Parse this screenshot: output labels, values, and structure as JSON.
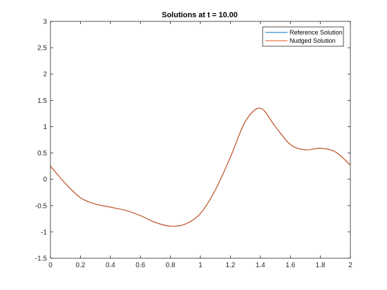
{
  "chart_data": {
    "type": "line",
    "title": "Solutions at t = 10.00",
    "xlabel": "",
    "ylabel": "",
    "xlim": [
      0,
      2
    ],
    "ylim": [
      -1.5,
      3
    ],
    "xticks": [
      0,
      0.2,
      0.4,
      0.6,
      0.8,
      1,
      1.2,
      1.4,
      1.6,
      1.8,
      2
    ],
    "xtick_labels": [
      "0",
      "0.2",
      "0.4",
      "0.6",
      "0.8",
      "1",
      "1.2",
      "1.4",
      "1.6",
      "1.8",
      "2"
    ],
    "yticks": [
      -1.5,
      -1,
      -0.5,
      0,
      0.5,
      1,
      1.5,
      2,
      2.5,
      3
    ],
    "ytick_labels": [
      "-1.5",
      "-1",
      "-0.5",
      "0",
      "0.5",
      "1",
      "1.5",
      "2",
      "2.5",
      "3"
    ],
    "grid": false,
    "legend_position": "top-right",
    "x": [
      0,
      0.1,
      0.2,
      0.3,
      0.4,
      0.5,
      0.6,
      0.7,
      0.8,
      0.9,
      1.0,
      1.1,
      1.2,
      1.3,
      1.4,
      1.5,
      1.6,
      1.7,
      1.8,
      1.9,
      2.0
    ],
    "series": [
      {
        "name": "Reference Solution",
        "color": "#0072BD",
        "values": [
          0.25,
          -0.08,
          -0.35,
          -0.47,
          -0.53,
          -0.59,
          -0.69,
          -0.82,
          -0.89,
          -0.85,
          -0.65,
          -0.2,
          0.42,
          1.1,
          1.35,
          1.0,
          0.66,
          0.56,
          0.59,
          0.52,
          0.27
        ]
      },
      {
        "name": "Nudged Solution",
        "color": "#D95319",
        "values": [
          0.25,
          -0.08,
          -0.35,
          -0.47,
          -0.53,
          -0.59,
          -0.69,
          -0.82,
          -0.89,
          -0.85,
          -0.65,
          -0.2,
          0.42,
          1.1,
          1.35,
          1.0,
          0.66,
          0.56,
          0.59,
          0.52,
          0.27
        ]
      }
    ]
  }
}
